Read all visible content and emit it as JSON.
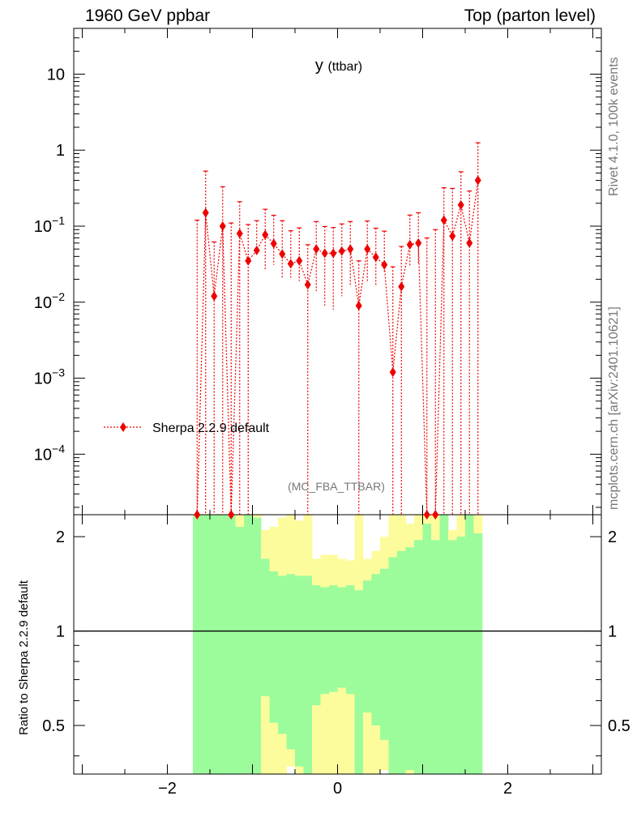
{
  "header": {
    "energy": "1960 GeV ppbar",
    "process": "Top (parton level)"
  },
  "side": {
    "rivet": "Rivet 4.1.0,  100k events",
    "mcplots": "mcplots.cern.ch [arXiv:2401.10621]"
  },
  "colors": {
    "mc": "#ee0000",
    "band_inner": "#9cfc9c",
    "band_outer": "#fcfc9c",
    "text_grey": "#777777"
  },
  "chart_data": [
    {
      "type": "scatter",
      "panel": "main",
      "title": "y",
      "title_sub": "(ttbar)",
      "analysis": "(MC_FBA_TTBAR)",
      "yscale": "log",
      "xlim": [
        -3.1,
        3.1
      ],
      "ylim": [
        1.6e-05,
        40
      ],
      "xticks": [
        -2,
        0,
        2
      ],
      "xtick_labels": [
        "−2",
        "0",
        "2"
      ],
      "yticks": [
        0.0001,
        0.001,
        0.01,
        0.1,
        1,
        10
      ],
      "ytick_labels": [
        {
          "base": "10",
          "exp": "−4"
        },
        {
          "base": "10",
          "exp": "−3"
        },
        {
          "base": "10",
          "exp": "−2"
        },
        {
          "base": "10",
          "exp": "−1"
        },
        {
          "base": "1",
          "exp": ""
        },
        {
          "base": "10",
          "exp": ""
        }
      ],
      "legend": "top-left",
      "series": [
        {
          "name": "Sherpa 2.2.9 default",
          "color": "#ee0000",
          "marker": "diamond",
          "linestyle": "dotted",
          "x": [
            -1.65,
            -1.55,
            -1.45,
            -1.35,
            -1.25,
            -1.15,
            -1.05,
            -0.95,
            -0.85,
            -0.75,
            -0.65,
            -0.55,
            -0.45,
            -0.35,
            -0.25,
            -0.15,
            -0.05,
            0.05,
            0.15,
            0.25,
            0.35,
            0.45,
            0.55,
            0.65,
            0.75,
            0.85,
            0.95,
            1.05,
            1.15,
            1.25,
            1.35,
            1.45,
            1.55,
            1.65
          ],
          "y": [
            0,
            0.15,
            0.012,
            0.1,
            0,
            0.08,
            0.035,
            0.048,
            0.077,
            0.059,
            0.043,
            0.032,
            0.035,
            0.017,
            0.05,
            0.044,
            0.044,
            0.047,
            0.05,
            0.009,
            0.05,
            0.039,
            0.031,
            0.0012,
            0.016,
            0.057,
            0.06,
            0,
            0,
            0.12,
            0.074,
            0.19,
            0.06,
            0.4
          ],
          "err_up": [
            0.12,
            0.38,
            0.05,
            0.23,
            0.11,
            0.13,
            0.07,
            0.07,
            0.09,
            0.08,
            0.075,
            0.055,
            0.06,
            0.04,
            0.065,
            0.055,
            0.052,
            0.06,
            0.065,
            0.026,
            0.067,
            0.055,
            0.055,
            0.028,
            0.038,
            0.083,
            0.09,
            0.07,
            0.09,
            0.2,
            0.24,
            0.33,
            0.23,
            0.85
          ],
          "err_dn": [
            0,
            0,
            0,
            0,
            0,
            0,
            0,
            0.005,
            0.05,
            0.028,
            0.022,
            0.011,
            0.016,
            0,
            0.036,
            0.035,
            0.036,
            0.035,
            0.034,
            0,
            0.032,
            0.023,
            0.006,
            0,
            0,
            0.028,
            0.028,
            0,
            0,
            0,
            0,
            0,
            0,
            0
          ]
        }
      ]
    },
    {
      "type": "area",
      "panel": "ratio",
      "ylabel": "Ratio to Sherpa 2.2.9 default",
      "yscale": "log",
      "xlim": [
        -3.1,
        3.1
      ],
      "ylim": [
        0.35,
        2.35
      ],
      "xticks": [
        -2,
        0,
        2
      ],
      "xtick_labels": [
        "−2",
        "0",
        "2"
      ],
      "yticks": [
        0.5,
        1,
        2
      ],
      "ytick_labels": [
        "0.5",
        "1",
        "2"
      ],
      "reference_line": 1,
      "band_x_edges": [
        -1.7,
        -1.6,
        -1.5,
        -1.4,
        -1.3,
        -1.2,
        -1.1,
        -1.0,
        -0.9,
        -0.8,
        -0.7,
        -0.6,
        -0.5,
        -0.4,
        -0.3,
        -0.2,
        -0.1,
        0.0,
        0.1,
        0.2,
        0.3,
        0.4,
        0.5,
        0.6,
        0.7,
        0.8,
        0.9,
        1.0,
        1.1,
        1.2,
        1.3,
        1.4,
        1.5,
        1.6,
        1.7
      ],
      "inner_band_upper": [
        3.0,
        3.0,
        3.0,
        3.0,
        3.0,
        2.15,
        3.0,
        2.3,
        1.7,
        1.55,
        1.5,
        1.52,
        1.5,
        1.5,
        1.4,
        1.38,
        1.4,
        1.38,
        1.4,
        1.35,
        1.45,
        1.52,
        1.58,
        1.72,
        1.8,
        1.85,
        1.95,
        2.2,
        1.95,
        3.0,
        1.95,
        2.0,
        3.0,
        2.05
      ],
      "outer_band_upper": [
        3.0,
        3.0,
        3.0,
        3.0,
        3.0,
        3.0,
        3.0,
        3.0,
        2.1,
        2.15,
        2.3,
        2.45,
        2.25,
        3.0,
        1.7,
        1.75,
        1.75,
        1.7,
        1.68,
        3.0,
        1.7,
        1.8,
        2.0,
        3.0,
        3.0,
        2.2,
        3.0,
        3.0,
        3.0,
        3.0,
        2.1,
        3.0,
        3.0,
        3.0
      ],
      "inner_band_lower": [
        0.0,
        0.0,
        0.0,
        0.0,
        0.0,
        0.0,
        0.0,
        0.0,
        0.62,
        0.51,
        0.47,
        0.42,
        0.37,
        0.0,
        0.58,
        0.63,
        0.64,
        0.66,
        0.63,
        0.0,
        0.55,
        0.5,
        0.45,
        0.0,
        0.0,
        0.36,
        0.0,
        0.0,
        0.0,
        0.0,
        0.0,
        0.0,
        0.0,
        0.0
      ],
      "outer_band_lower": [
        0.0,
        0.0,
        0.0,
        0.0,
        0.0,
        0.0,
        0.0,
        0.0,
        0.35,
        0.35,
        0.35,
        0.37,
        0.35,
        0.36,
        0.35,
        0.35,
        0.35,
        0.35,
        0.35,
        0.35,
        0.35,
        0.35,
        0.36,
        0.35,
        0.35,
        0.35,
        0.35,
        0.35,
        0.35,
        0.35,
        0.35,
        0.35,
        0.35,
        0.35
      ]
    }
  ]
}
